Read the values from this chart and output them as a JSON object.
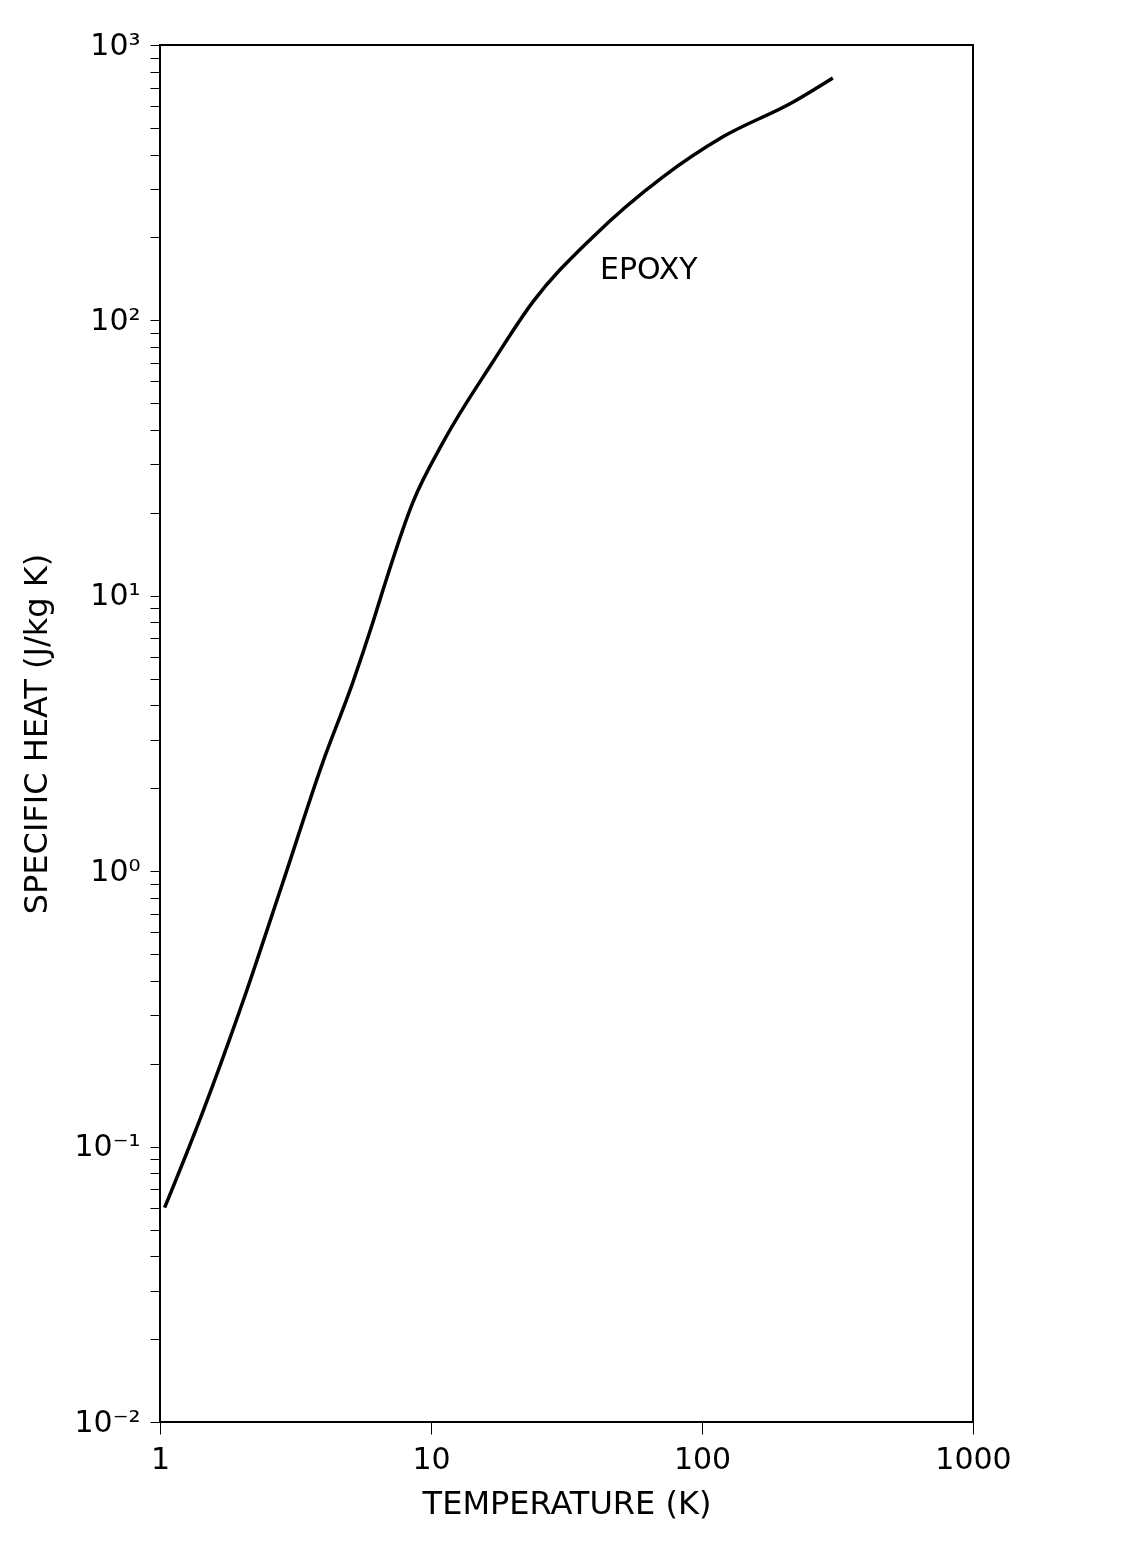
{
  "chart_data": {
    "type": "line",
    "xlabel": "TEMPERATURE    (K)",
    "ylabel": "SPECIFIC HEAT    (J/kg K)",
    "log": "xy",
    "grid": false,
    "marker": "none",
    "line_style": "solid",
    "xlim": [
      1,
      1000
    ],
    "xticks": [
      1,
      10,
      100,
      1000
    ],
    "ylim": [
      0.01,
      1000
    ],
    "yticks": [
      {
        "value": 0.01,
        "label": "10⁻²"
      },
      {
        "value": 0.02,
        "label": null
      },
      {
        "value": 0.03,
        "label": null
      },
      {
        "value": 0.04,
        "label": null
      },
      {
        "value": 0.05,
        "label": null
      },
      {
        "value": 0.06,
        "label": null
      },
      {
        "value": 0.07,
        "label": null
      },
      {
        "value": 0.08,
        "label": null
      },
      {
        "value": 0.09,
        "label": null
      },
      {
        "value": 0.1,
        "label": "10⁻¹"
      },
      {
        "value": 0.2,
        "label": null
      },
      {
        "value": 0.3,
        "label": null
      },
      {
        "value": 0.4,
        "label": null
      },
      {
        "value": 0.5,
        "label": null
      },
      {
        "value": 0.6,
        "label": null
      },
      {
        "value": 0.7,
        "label": null
      },
      {
        "value": 0.8,
        "label": null
      },
      {
        "value": 0.9,
        "label": null
      },
      {
        "value": 1,
        "label": "10⁰"
      },
      {
        "value": 2,
        "label": null
      },
      {
        "value": 3,
        "label": null
      },
      {
        "value": 4,
        "label": null
      },
      {
        "value": 5,
        "label": null
      },
      {
        "value": 6,
        "label": null
      },
      {
        "value": 7,
        "label": null
      },
      {
        "value": 8,
        "label": null
      },
      {
        "value": 9,
        "label": null
      },
      {
        "value": 10,
        "label": "10¹"
      },
      {
        "value": 20,
        "label": null
      },
      {
        "value": 30,
        "label": null
      },
      {
        "value": 40,
        "label": null
      },
      {
        "value": 50,
        "label": null
      },
      {
        "value": 60,
        "label": null
      },
      {
        "value": 70,
        "label": null
      },
      {
        "value": 80,
        "label": null
      },
      {
        "value": 90,
        "label": null
      },
      {
        "value": 100,
        "label": "10²"
      },
      {
        "value": 200,
        "label": null
      },
      {
        "value": 300,
        "label": null
      },
      {
        "value": 400,
        "label": null
      },
      {
        "value": 500,
        "label": null
      },
      {
        "value": 600,
        "label": null
      },
      {
        "value": 700,
        "label": null
      },
      {
        "value": 800,
        "label": null
      },
      {
        "value": 900,
        "label": null
      },
      {
        "value": 1000,
        "label": "10³"
      }
    ],
    "series": [
      {
        "color": "#000000",
        "x": [
          1.04,
          1.44,
          2.02,
          2.84,
          3.99,
          5.15,
          6.1,
          6.65,
          8.58,
          11.1,
          16.9,
          23.8,
          39.6,
          71.8,
          119,
          217,
          304
        ],
        "values": [
          0.06,
          0.134,
          0.335,
          0.91,
          2.49,
          4.86,
          8.0,
          10.5,
          21.9,
          36.2,
          70.6,
          117,
          201,
          332,
          463,
          621,
          759
        ]
      }
    ],
    "annotations": [
      "EPOXY"
    ]
  }
}
